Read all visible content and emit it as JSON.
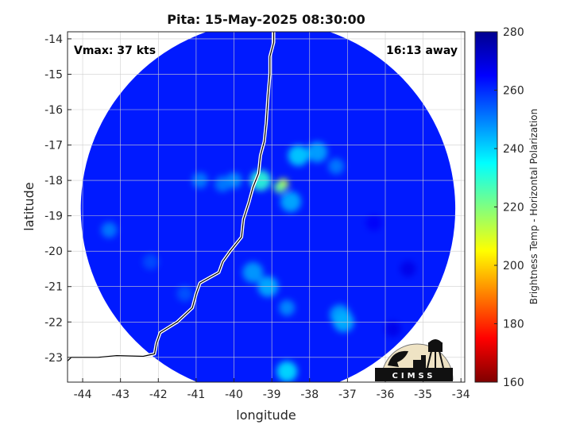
{
  "chart_data": {
    "type": "heatmap",
    "title": "Pita: 15-May-2025 08:30:00",
    "xlabel": "longitude",
    "ylabel": "latitude",
    "xlim": [
      -44.4,
      -33.9
    ],
    "ylim": [
      -23.7,
      -13.8
    ],
    "xticks": [
      -44,
      -43,
      -42,
      -41,
      -40,
      -39,
      -38,
      -37,
      -36,
      -35,
      -34
    ],
    "yticks": [
      -14,
      -15,
      -16,
      -17,
      -18,
      -19,
      -20,
      -21,
      -22,
      -23
    ],
    "grid": true,
    "annotations": {
      "vmax": "Vmax: 37 kts",
      "away": "16:13 away"
    },
    "colorbar": {
      "label": "Brightness Temp - Horizontal Polarization",
      "min": 160,
      "max": 280,
      "ticks": [
        160,
        180,
        200,
        220,
        240,
        260,
        280
      ],
      "colormap": [
        "#7f0000",
        "#ff0000",
        "#ff8000",
        "#ffff00",
        "#80ff80",
        "#00ffff",
        "#0080ff",
        "#0000ff",
        "#00008f"
      ]
    },
    "swath": {
      "center": [
        -39.1,
        -18.8
      ],
      "radius_deg": 4.95,
      "background_value": 262
    },
    "features": [
      {
        "lon": -38.7,
        "lat": -18.1,
        "value": 212
      },
      {
        "lon": -38.8,
        "lat": -18.2,
        "value": 222
      },
      {
        "lon": -39.3,
        "lat": -18.0,
        "value": 230
      },
      {
        "lon": -38.3,
        "lat": -17.3,
        "value": 240
      },
      {
        "lon": -37.8,
        "lat": -17.2,
        "value": 245
      },
      {
        "lon": -38.5,
        "lat": -18.6,
        "value": 244
      },
      {
        "lon": -37.3,
        "lat": -17.6,
        "value": 250
      },
      {
        "lon": -39.5,
        "lat": -20.6,
        "value": 246
      },
      {
        "lon": -39.1,
        "lat": -21.0,
        "value": 244
      },
      {
        "lon": -38.6,
        "lat": -21.6,
        "value": 248
      },
      {
        "lon": -37.2,
        "lat": -21.8,
        "value": 246
      },
      {
        "lon": -37.1,
        "lat": -22.0,
        "value": 244
      },
      {
        "lon": -38.6,
        "lat": -23.4,
        "value": 238
      },
      {
        "lon": -40.0,
        "lat": -18.0,
        "value": 248
      },
      {
        "lon": -40.9,
        "lat": -18.0,
        "value": 250
      },
      {
        "lon": -40.3,
        "lat": -18.1,
        "value": 250
      },
      {
        "lon": -43.3,
        "lat": -19.4,
        "value": 250
      },
      {
        "lon": -35.4,
        "lat": -20.5,
        "value": 268
      },
      {
        "lon": -36.3,
        "lat": -19.2,
        "value": 266
      },
      {
        "lon": -35.8,
        "lat": -22.2,
        "value": 268
      },
      {
        "lon": -42.2,
        "lat": -20.3,
        "value": 256
      },
      {
        "lon": -41.3,
        "lat": -21.2,
        "value": 255
      }
    ],
    "coastline": [
      [
        -38.95,
        -13.8
      ],
      [
        -38.95,
        -14.1
      ],
      [
        -39.05,
        -14.5
      ],
      [
        -39.05,
        -15.0
      ],
      [
        -39.1,
        -15.6
      ],
      [
        -39.15,
        -16.4
      ],
      [
        -39.2,
        -16.9
      ],
      [
        -39.3,
        -17.3
      ],
      [
        -39.35,
        -17.8
      ],
      [
        -39.5,
        -18.2
      ],
      [
        -39.6,
        -18.6
      ],
      [
        -39.75,
        -19.1
      ],
      [
        -39.8,
        -19.6
      ],
      [
        -40.1,
        -20.0
      ],
      [
        -40.3,
        -20.3
      ],
      [
        -40.4,
        -20.6
      ],
      [
        -40.9,
        -20.9
      ],
      [
        -41.0,
        -21.2
      ],
      [
        -41.1,
        -21.6
      ],
      [
        -41.5,
        -22.0
      ],
      [
        -41.95,
        -22.3
      ],
      [
        -42.05,
        -22.6
      ],
      [
        -42.1,
        -22.9
      ],
      [
        -42.4,
        -22.97
      ],
      [
        -43.1,
        -22.95
      ],
      [
        -43.6,
        -23.0
      ],
      [
        -44.3,
        -23.0
      ],
      [
        -44.4,
        -23.1
      ]
    ]
  },
  "logo": {
    "text": "CIMSS"
  }
}
